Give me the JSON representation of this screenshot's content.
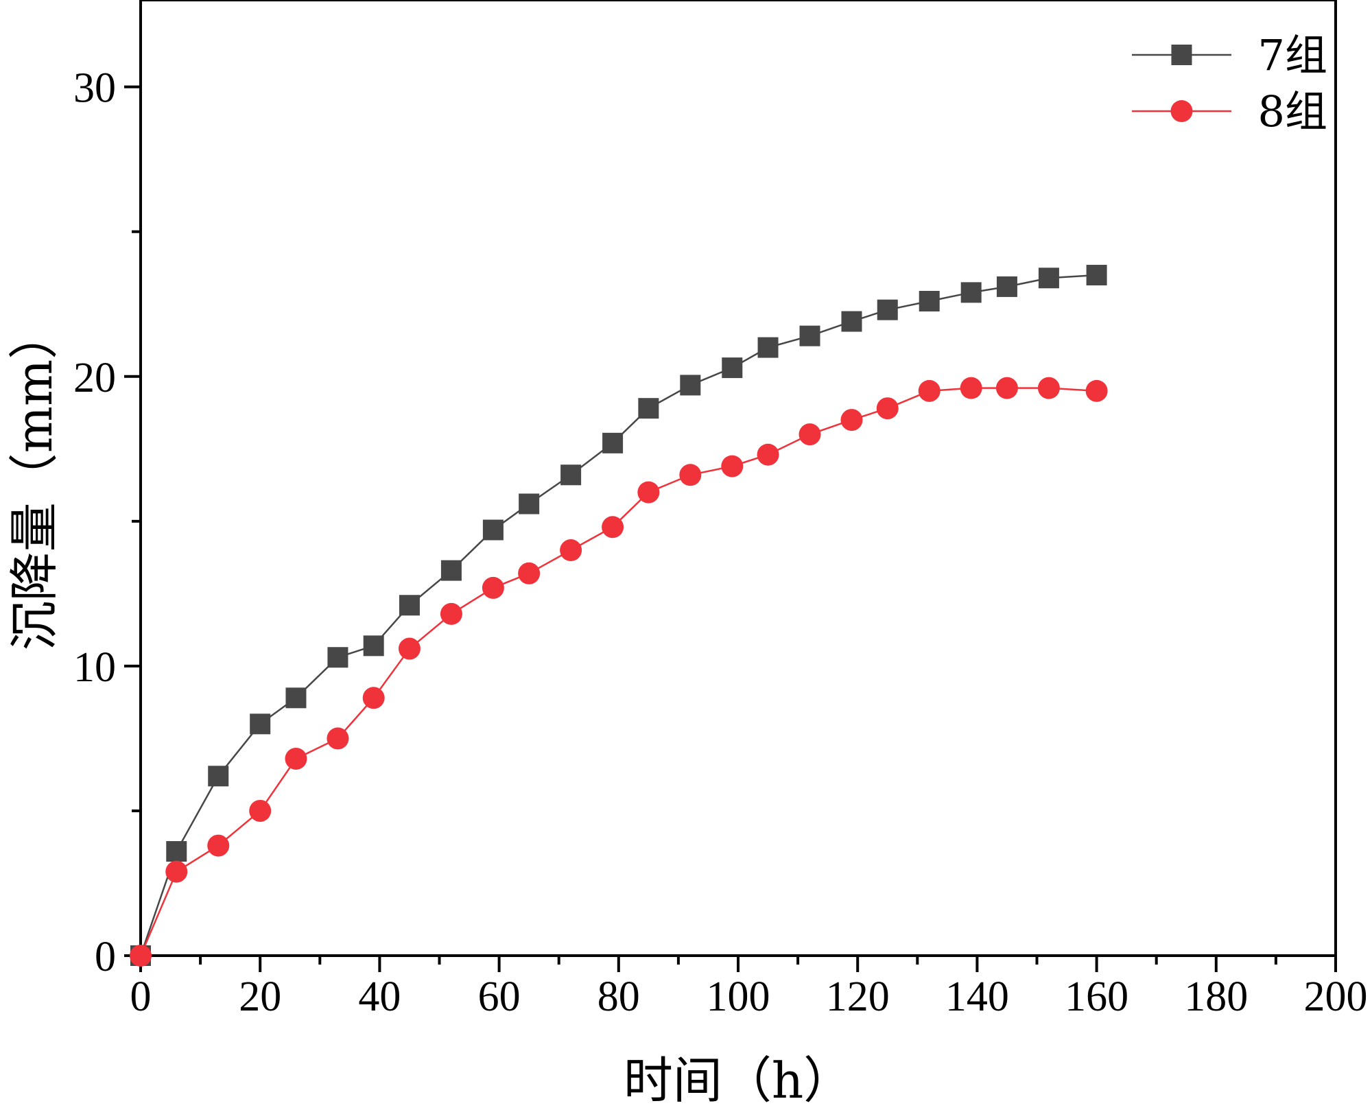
{
  "chart_data": {
    "type": "line",
    "title": "",
    "xlabel": "时间（h）",
    "ylabel": "沉降量（mm）",
    "xlim": [
      0,
      200
    ],
    "ylim": [
      0,
      33
    ],
    "xticks": [
      0,
      20,
      40,
      60,
      80,
      100,
      120,
      140,
      160,
      180,
      200
    ],
    "yticks": [
      0,
      10,
      20,
      30
    ],
    "grid": false,
    "legend_position": "top-right",
    "x": [
      0,
      6,
      13,
      20,
      26,
      33,
      39,
      45,
      52,
      59,
      65,
      72,
      79,
      85,
      92,
      99,
      105,
      112,
      119,
      125,
      132,
      139,
      145,
      152,
      160
    ],
    "series": [
      {
        "name": "7组",
        "marker": "square",
        "color": "#474747",
        "values": [
          0,
          3.6,
          6.2,
          8.0,
          8.9,
          10.3,
          10.7,
          12.1,
          13.3,
          14.7,
          15.6,
          16.6,
          17.7,
          18.9,
          19.7,
          20.3,
          21.0,
          21.4,
          21.9,
          22.3,
          22.6,
          22.9,
          23.1,
          23.4,
          23.5
        ]
      },
      {
        "name": "8组",
        "marker": "circle",
        "color": "#f0323a",
        "values": [
          0,
          2.9,
          3.8,
          5.0,
          6.8,
          7.5,
          8.9,
          10.6,
          11.8,
          12.7,
          13.2,
          14.0,
          14.8,
          16.0,
          16.6,
          16.9,
          17.3,
          18.0,
          18.5,
          18.9,
          19.5,
          19.6,
          19.6,
          19.6,
          19.5
        ]
      }
    ]
  }
}
